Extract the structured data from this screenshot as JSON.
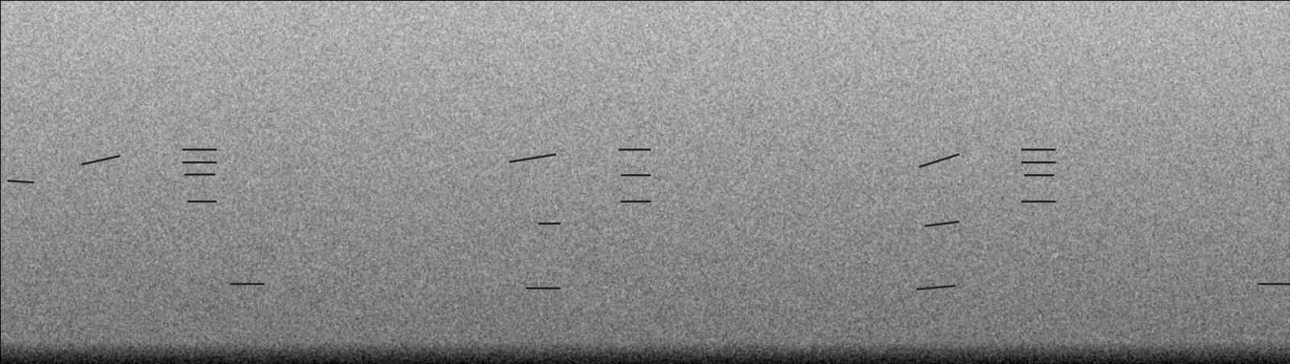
{
  "chart_data": {
    "type": "spectrogram",
    "tick_labels": false,
    "color": "#2a2a2a",
    "xlim": [
      0,
      1568
    ],
    "ylim": [
      0,
      443
    ],
    "marks": [
      {
        "x": [
          100,
          145
        ],
        "y": [
          243,
          253
        ]
      },
      {
        "x": [
          222,
          262
        ],
        "y": [
          261,
          261
        ]
      },
      {
        "x": [
          222,
          262
        ],
        "y": [
          246,
          246
        ]
      },
      {
        "x": [
          225,
          260
        ],
        "y": [
          231,
          231
        ]
      },
      {
        "x": [
          228,
          262
        ],
        "y": [
          198,
          198
        ]
      },
      {
        "x": [
          10,
          40
        ],
        "y": [
          223,
          221
        ]
      },
      {
        "x": [
          620,
          675
        ],
        "y": [
          246,
          255
        ]
      },
      {
        "x": [
          752,
          790
        ],
        "y": [
          261,
          261
        ]
      },
      {
        "x": [
          755,
          790
        ],
        "y": [
          230,
          230
        ]
      },
      {
        "x": [
          755,
          790
        ],
        "y": [
          198,
          198
        ]
      },
      {
        "x": [
          655,
          680
        ],
        "y": [
          171,
          171
        ]
      },
      {
        "x": [
          1118,
          1165
        ],
        "y": [
          240,
          255
        ]
      },
      {
        "x": [
          1242,
          1282
        ],
        "y": [
          261,
          261
        ]
      },
      {
        "x": [
          1242,
          1282
        ],
        "y": [
          246,
          246
        ]
      },
      {
        "x": [
          1245,
          1280
        ],
        "y": [
          230,
          230
        ]
      },
      {
        "x": [
          1242,
          1282
        ],
        "y": [
          198,
          198
        ]
      },
      {
        "x": [
          1125,
          1165
        ],
        "y": [
          168,
          173
        ]
      },
      {
        "x": [
          280,
          320
        ],
        "y": [
          98,
          98
        ]
      },
      {
        "x": [
          640,
          680
        ],
        "y": [
          93,
          93
        ]
      },
      {
        "x": [
          1115,
          1160
        ],
        "y": [
          91,
          95
        ]
      },
      {
        "x": [
          1530,
          1568
        ],
        "y": [
          98,
          98
        ]
      }
    ]
  }
}
